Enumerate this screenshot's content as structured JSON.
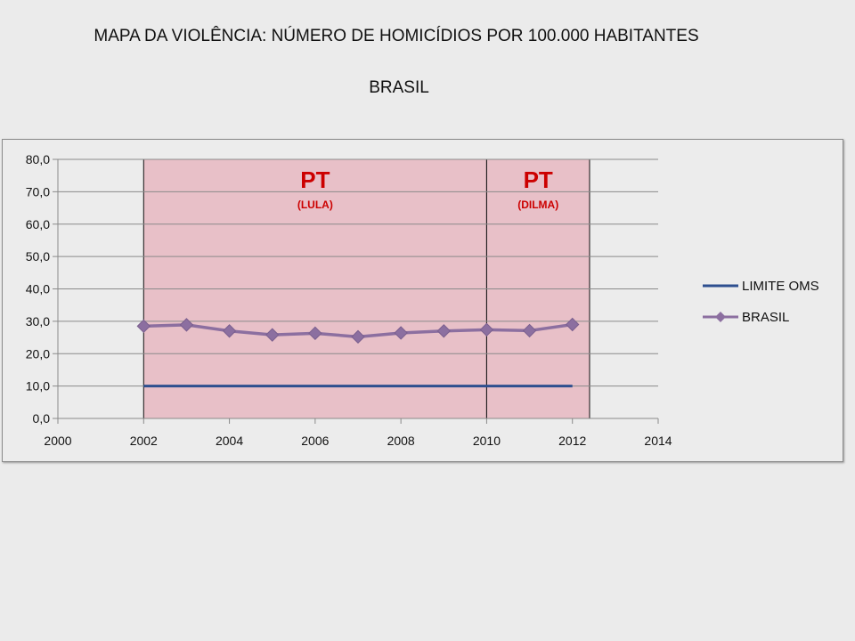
{
  "header": {
    "title": "MAPA DA VIOLÊNCIA: NÚMERO DE HOMICÍDIOS POR 100.000 HABITANTES",
    "subtitle": "BRASIL"
  },
  "chart_data": {
    "type": "line",
    "title": "MAPA DA VIOLÊNCIA: NÚMERO DE HOMICÍDIOS POR 100.000 HABITANTES",
    "subtitle": "BRASIL",
    "xlabel": "",
    "ylabel": "",
    "xlim": [
      2000,
      2014
    ],
    "ylim": [
      0,
      80
    ],
    "xticks": [
      2000,
      2002,
      2004,
      2006,
      2008,
      2010,
      2012,
      2014
    ],
    "yticks": [
      0,
      10,
      20,
      30,
      40,
      50,
      60,
      70,
      80
    ],
    "ytick_labels": [
      "0,0",
      "10,0",
      "20,0",
      "30,0",
      "40,0",
      "50,0",
      "60,0",
      "70,0",
      "80,0"
    ],
    "grid": true,
    "legend_position": "right",
    "series": [
      {
        "name": "LIMITE OMS",
        "color": "#2e4f8f",
        "marker": "none",
        "x": [
          2002,
          2012
        ],
        "values": [
          10,
          10
        ]
      },
      {
        "name": "BRASIL",
        "color": "#8c6fa0",
        "marker": "diamond",
        "x": [
          2002,
          2003,
          2004,
          2005,
          2006,
          2007,
          2008,
          2009,
          2010,
          2011,
          2012
        ],
        "values": [
          28.5,
          28.9,
          27.0,
          25.8,
          26.3,
          25.2,
          26.4,
          27.0,
          27.4,
          27.1,
          29.0
        ]
      }
    ],
    "shaded_regions": [
      {
        "x_start": 2002,
        "x_end": 2010,
        "label": "PT",
        "sublabel": "(LULA)",
        "color": "#e8c0c8"
      },
      {
        "x_start": 2010,
        "x_end": 2012.4,
        "label": "PT",
        "sublabel": "(DILMA)",
        "color": "#e8c0c8"
      }
    ]
  }
}
